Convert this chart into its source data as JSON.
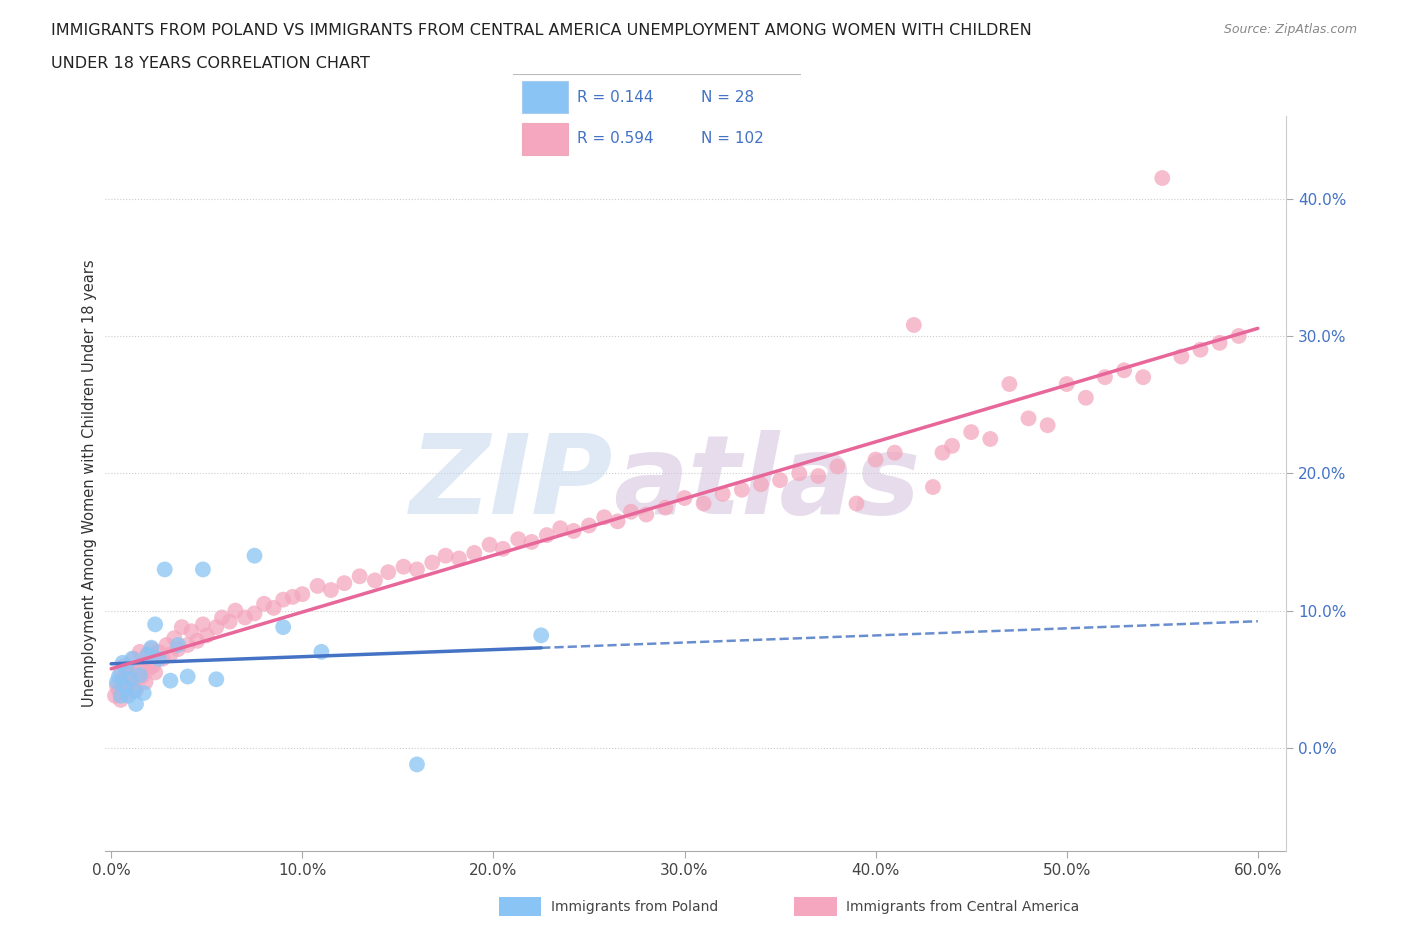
{
  "title_line1": "IMMIGRANTS FROM POLAND VS IMMIGRANTS FROM CENTRAL AMERICA UNEMPLOYMENT AMONG WOMEN WITH CHILDREN",
  "title_line2": "UNDER 18 YEARS CORRELATION CHART",
  "source": "Source: ZipAtlas.com",
  "ylabel": "Unemployment Among Women with Children Under 18 years",
  "xlim": [
    -0.003,
    0.615
  ],
  "ylim": [
    -0.075,
    0.46
  ],
  "yticks": [
    0.0,
    0.1,
    0.2,
    0.3,
    0.4
  ],
  "xticks": [
    0.0,
    0.1,
    0.2,
    0.3,
    0.4,
    0.5,
    0.6
  ],
  "legend1_R": "0.144",
  "legend1_N": "28",
  "legend2_R": "0.594",
  "legend2_N": "102",
  "poland_color": "#89C4F4",
  "central_color": "#F4A7BE",
  "poland_line_solid_color": "#4472C4",
  "central_line_solid_color": "#E8679A",
  "watermark_zip_color": "#C8DCF0",
  "watermark_atlas_color": "#D8C0DC",
  "grid_color": "#CCCCCC",
  "background": "#FFFFFF",
  "poland_x": [
    0.003,
    0.004,
    0.005,
    0.006,
    0.007,
    0.008,
    0.009,
    0.01,
    0.011,
    0.012,
    0.013,
    0.015,
    0.017,
    0.019,
    0.021,
    0.023,
    0.025,
    0.028,
    0.031,
    0.035,
    0.04,
    0.048,
    0.055,
    0.075,
    0.09,
    0.11,
    0.16,
    0.225
  ],
  "poland_y": [
    0.048,
    0.052,
    0.038,
    0.062,
    0.045,
    0.058,
    0.038,
    0.05,
    0.065,
    0.042,
    0.032,
    0.053,
    0.04,
    0.068,
    0.073,
    0.09,
    0.065,
    0.13,
    0.049,
    0.075,
    0.052,
    0.13,
    0.05,
    0.14,
    0.088,
    0.07,
    -0.012,
    0.082
  ],
  "central_x": [
    0.002,
    0.003,
    0.004,
    0.005,
    0.005,
    0.006,
    0.007,
    0.008,
    0.009,
    0.01,
    0.011,
    0.012,
    0.013,
    0.014,
    0.015,
    0.016,
    0.017,
    0.018,
    0.019,
    0.02,
    0.021,
    0.022,
    0.023,
    0.025,
    0.027,
    0.029,
    0.031,
    0.033,
    0.035,
    0.037,
    0.04,
    0.042,
    0.045,
    0.048,
    0.05,
    0.055,
    0.058,
    0.062,
    0.065,
    0.07,
    0.075,
    0.08,
    0.085,
    0.09,
    0.095,
    0.1,
    0.108,
    0.115,
    0.122,
    0.13,
    0.138,
    0.145,
    0.153,
    0.16,
    0.168,
    0.175,
    0.182,
    0.19,
    0.198,
    0.205,
    0.213,
    0.22,
    0.228,
    0.235,
    0.242,
    0.25,
    0.258,
    0.265,
    0.272,
    0.28,
    0.29,
    0.3,
    0.31,
    0.32,
    0.33,
    0.34,
    0.35,
    0.36,
    0.37,
    0.38,
    0.39,
    0.4,
    0.41,
    0.42,
    0.43,
    0.435,
    0.44,
    0.45,
    0.46,
    0.47,
    0.48,
    0.49,
    0.5,
    0.51,
    0.52,
    0.53,
    0.54,
    0.55,
    0.56,
    0.57,
    0.58,
    0.59
  ],
  "central_y": [
    0.038,
    0.045,
    0.042,
    0.055,
    0.035,
    0.05,
    0.06,
    0.04,
    0.052,
    0.055,
    0.048,
    0.065,
    0.042,
    0.058,
    0.07,
    0.052,
    0.06,
    0.048,
    0.068,
    0.058,
    0.072,
    0.06,
    0.055,
    0.07,
    0.065,
    0.075,
    0.068,
    0.08,
    0.072,
    0.088,
    0.075,
    0.085,
    0.078,
    0.09,
    0.082,
    0.088,
    0.095,
    0.092,
    0.1,
    0.095,
    0.098,
    0.105,
    0.102,
    0.108,
    0.11,
    0.112,
    0.118,
    0.115,
    0.12,
    0.125,
    0.122,
    0.128,
    0.132,
    0.13,
    0.135,
    0.14,
    0.138,
    0.142,
    0.148,
    0.145,
    0.152,
    0.15,
    0.155,
    0.16,
    0.158,
    0.162,
    0.168,
    0.165,
    0.172,
    0.17,
    0.175,
    0.182,
    0.178,
    0.185,
    0.188,
    0.192,
    0.195,
    0.2,
    0.198,
    0.205,
    0.178,
    0.21,
    0.215,
    0.308,
    0.19,
    0.215,
    0.22,
    0.23,
    0.225,
    0.265,
    0.24,
    0.235,
    0.265,
    0.255,
    0.27,
    0.275,
    0.27,
    0.415,
    0.285,
    0.29,
    0.295,
    0.3
  ]
}
